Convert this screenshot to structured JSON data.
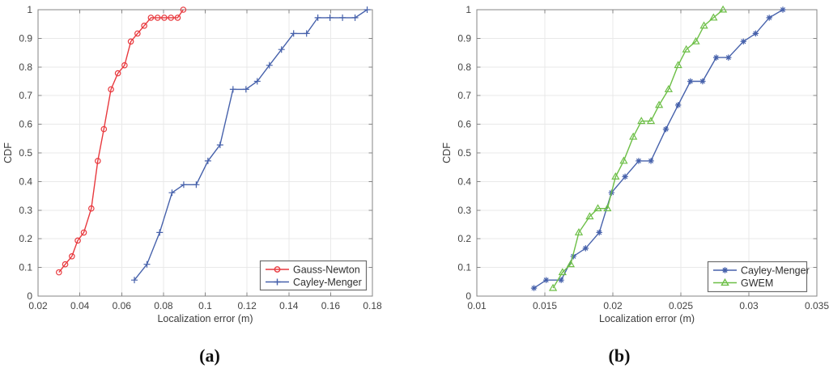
{
  "page": {
    "background": "#ffffff"
  },
  "style": {
    "axis_color": "#848484",
    "grid_color": "#e9e9e9",
    "tick_label_color": "#444444",
    "label_color": "#3c3c3c",
    "legend_border_color": "#6e6e6e",
    "legend_text_color": "#2f2f2f",
    "caption_color": "#111111",
    "series_red": "#e8393e",
    "series_blue": "#4661ab",
    "series_green": "#6dbf47"
  },
  "chart_data": [
    {
      "type": "line",
      "caption": "(a)",
      "title": "",
      "xlabel": "Localization error (m)",
      "ylabel": "CDF",
      "xlim": [
        0.02,
        0.18
      ],
      "ylim": [
        0,
        1
      ],
      "grid": true,
      "legend_position": "lower right",
      "xticks": [
        0.02,
        0.04,
        0.06,
        0.08,
        0.1,
        0.12,
        0.14,
        0.16,
        0.18
      ],
      "xtick_labels": [
        "0.02",
        "0.04",
        "0.06",
        "0.08",
        "0.1",
        "0.12",
        "0.14",
        "0.16",
        "0.18"
      ],
      "yticks": [
        0,
        0.1,
        0.2,
        0.3,
        0.4,
        0.5,
        0.6,
        0.7,
        0.8,
        0.9,
        1
      ],
      "ytick_labels": [
        "0",
        "0.1",
        "0.2",
        "0.3",
        "0.4",
        "0.5",
        "0.6",
        "0.7",
        "0.8",
        "0.9",
        "1"
      ],
      "series": [
        {
          "name": "Gauss-Newton",
          "color": "#e8393e",
          "marker": "circle",
          "x": [
            0.03,
            0.033,
            0.0362,
            0.039,
            0.0419,
            0.0455,
            0.0486,
            0.0515,
            0.0549,
            0.0582,
            0.0614,
            0.0644,
            0.0676,
            0.0708,
            0.074,
            0.0772,
            0.0804,
            0.0836,
            0.0868,
            0.0895
          ],
          "y": [
            0.083,
            0.111,
            0.139,
            0.194,
            0.222,
            0.306,
            0.472,
            0.583,
            0.722,
            0.778,
            0.806,
            0.889,
            0.917,
            0.944,
            0.972,
            0.972,
            0.972,
            0.972,
            0.972,
            1
          ]
        },
        {
          "name": "Cayley-Menger",
          "color": "#4661ab",
          "marker": "plus",
          "x": [
            0.0661,
            0.0721,
            0.0782,
            0.0841,
            0.0897,
            0.0957,
            0.1013,
            0.1071,
            0.1133,
            0.1195,
            0.1249,
            0.1307,
            0.1365,
            0.1423,
            0.1485,
            0.1539,
            0.1597,
            0.1657,
            0.1717,
            0.1775
          ],
          "y": [
            0.056,
            0.111,
            0.222,
            0.361,
            0.389,
            0.389,
            0.472,
            0.528,
            0.722,
            0.722,
            0.75,
            0.806,
            0.861,
            0.917,
            0.917,
            0.972,
            0.972,
            0.972,
            0.972,
            1
          ]
        }
      ]
    },
    {
      "type": "line",
      "caption": "(b)",
      "title": "",
      "xlabel": "Localization error (m)",
      "ylabel": "CDF",
      "xlim": [
        0.01,
        0.035
      ],
      "ylim": [
        0,
        1
      ],
      "grid": true,
      "legend_position": "lower right",
      "xticks": [
        0.01,
        0.015,
        0.02,
        0.025,
        0.03,
        0.035
      ],
      "xtick_labels": [
        "0.01",
        "0.015",
        "0.02",
        "0.025",
        "0.03",
        "0.035"
      ],
      "yticks": [
        0,
        0.1,
        0.2,
        0.3,
        0.4,
        0.5,
        0.6,
        0.7,
        0.8,
        0.9,
        1
      ],
      "ytick_labels": [
        "0",
        "0.1",
        "0.2",
        "0.3",
        "0.4",
        "0.5",
        "0.6",
        "0.7",
        "0.8",
        "0.9",
        "1"
      ],
      "series": [
        {
          "name": "Cayley-Menger",
          "color": "#4661ab",
          "marker": "asterisk",
          "x": [
            0.0142,
            0.0151,
            0.0162,
            0.0171,
            0.018,
            0.019,
            0.0199,
            0.0209,
            0.0219,
            0.0228,
            0.0239,
            0.0248,
            0.0257,
            0.0266,
            0.0276,
            0.0285,
            0.0296,
            0.0305,
            0.0315,
            0.0325
          ],
          "y": [
            0.028,
            0.056,
            0.056,
            0.139,
            0.167,
            0.222,
            0.361,
            0.417,
            0.472,
            0.472,
            0.583,
            0.667,
            0.75,
            0.75,
            0.833,
            0.833,
            0.889,
            0.917,
            0.972,
            1
          ]
        },
        {
          "name": "GWEM",
          "color": "#6dbf47",
          "marker": "triangle",
          "x": [
            0.0156,
            0.0163,
            0.0169,
            0.0175,
            0.0183,
            0.0189,
            0.0196,
            0.0202,
            0.0208,
            0.0215,
            0.0221,
            0.0228,
            0.0234,
            0.0241,
            0.0248,
            0.0254,
            0.0261,
            0.0267,
            0.0274,
            0.0281
          ],
          "y": [
            0.028,
            0.083,
            0.111,
            0.222,
            0.278,
            0.306,
            0.306,
            0.417,
            0.472,
            0.556,
            0.611,
            0.611,
            0.667,
            0.722,
            0.806,
            0.861,
            0.889,
            0.944,
            0.972,
            1
          ]
        }
      ]
    }
  ]
}
